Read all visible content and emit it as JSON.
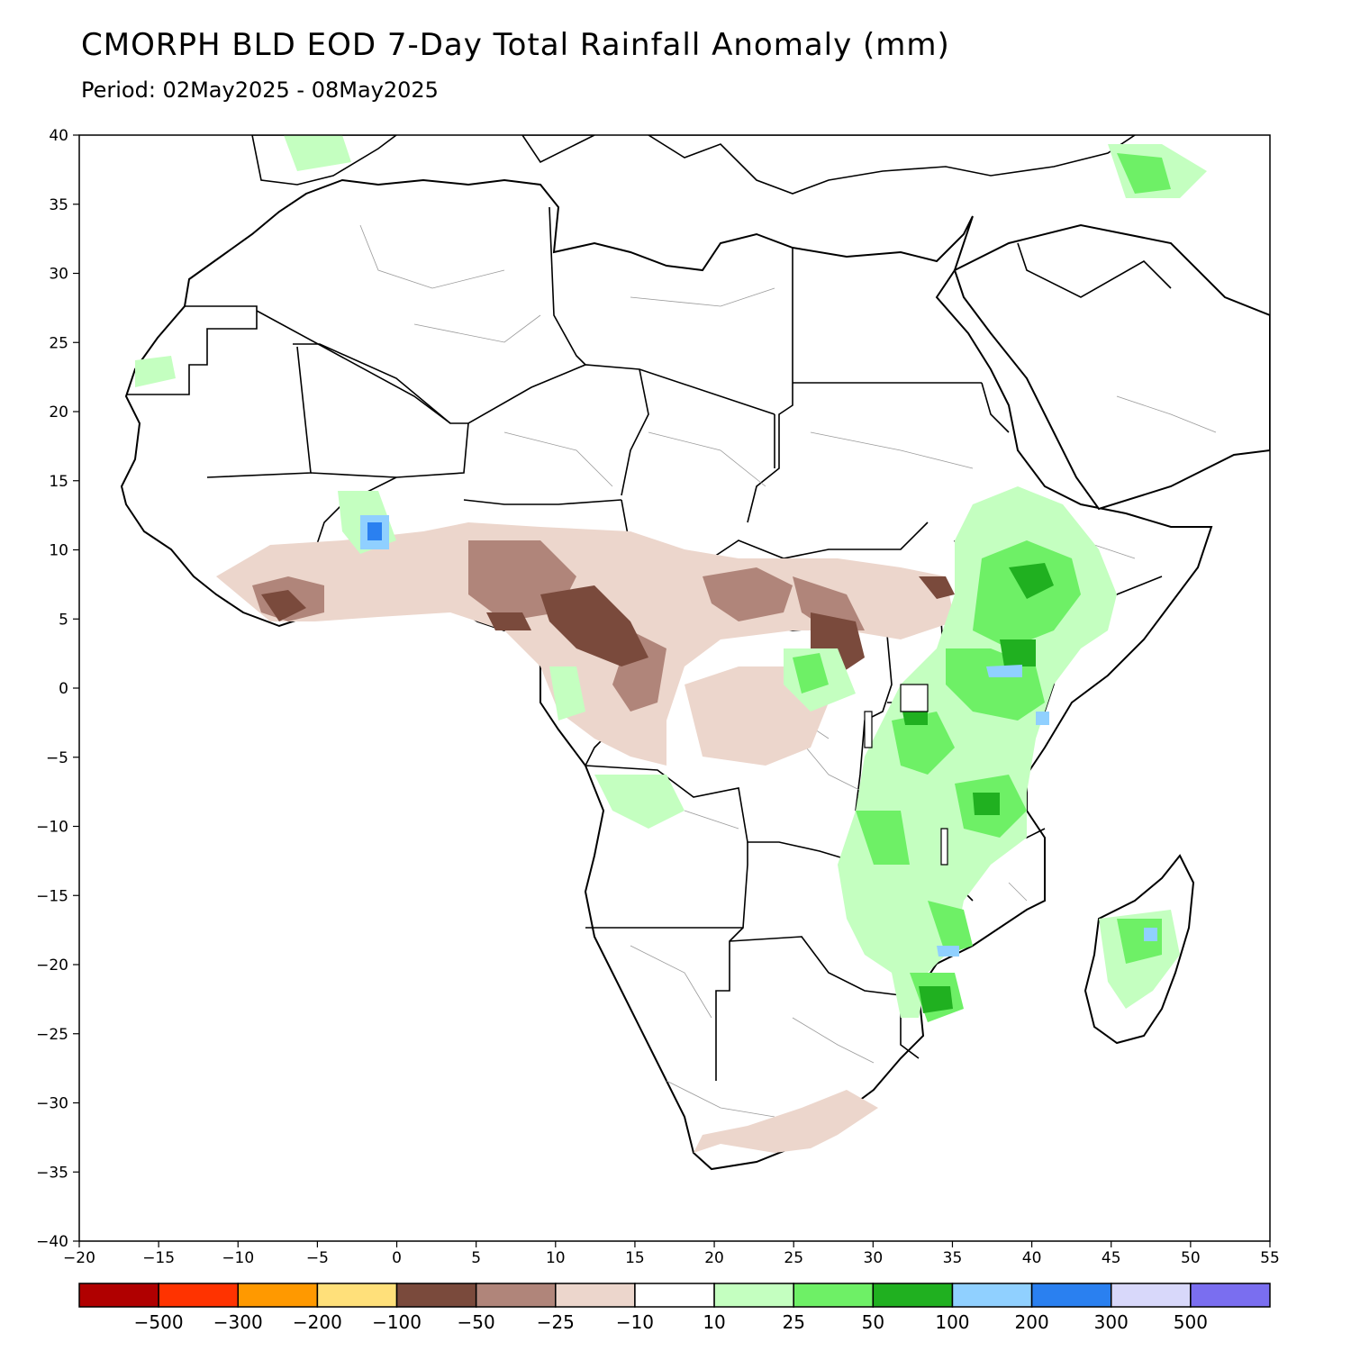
{
  "header": {
    "title": "CMORPH BLD EOD 7-Day Total Rainfall Anomaly (mm)",
    "subtitle": "Period: 02May2025 - 08May2025"
  },
  "axes": {
    "x_ticks": [
      "-20",
      "-15",
      "-10",
      "-5",
      "0",
      "5",
      "10",
      "15",
      "20",
      "25",
      "30",
      "35",
      "40",
      "45",
      "50",
      "55"
    ],
    "y_ticks": [
      "40",
      "35",
      "30",
      "25",
      "20",
      "15",
      "10",
      "5",
      "0",
      "-5",
      "-10",
      "-15",
      "-20",
      "-25",
      "-30",
      "-35",
      "-40"
    ],
    "x_range": [
      -20,
      55
    ],
    "y_range": [
      -40,
      40
    ]
  },
  "legend": {
    "colors": [
      "#b00000",
      "#ff3300",
      "#ff9900",
      "#ffe07a",
      "#7a4a3c",
      "#b0857a",
      "#ecd6cc",
      "#ffffff",
      "#c4ffc0",
      "#6ef066",
      "#20b020",
      "#90d0ff",
      "#2a80f0",
      "#d8d8fa",
      "#7a6ef0"
    ],
    "labels": [
      "-500",
      "-300",
      "-200",
      "-100",
      "-50",
      "-25",
      "-10",
      "10",
      "25",
      "50",
      "100",
      "200",
      "300",
      "500"
    ]
  },
  "regions": {
    "land": "Africa",
    "ocean": "Atlantic / Indian Ocean"
  }
}
